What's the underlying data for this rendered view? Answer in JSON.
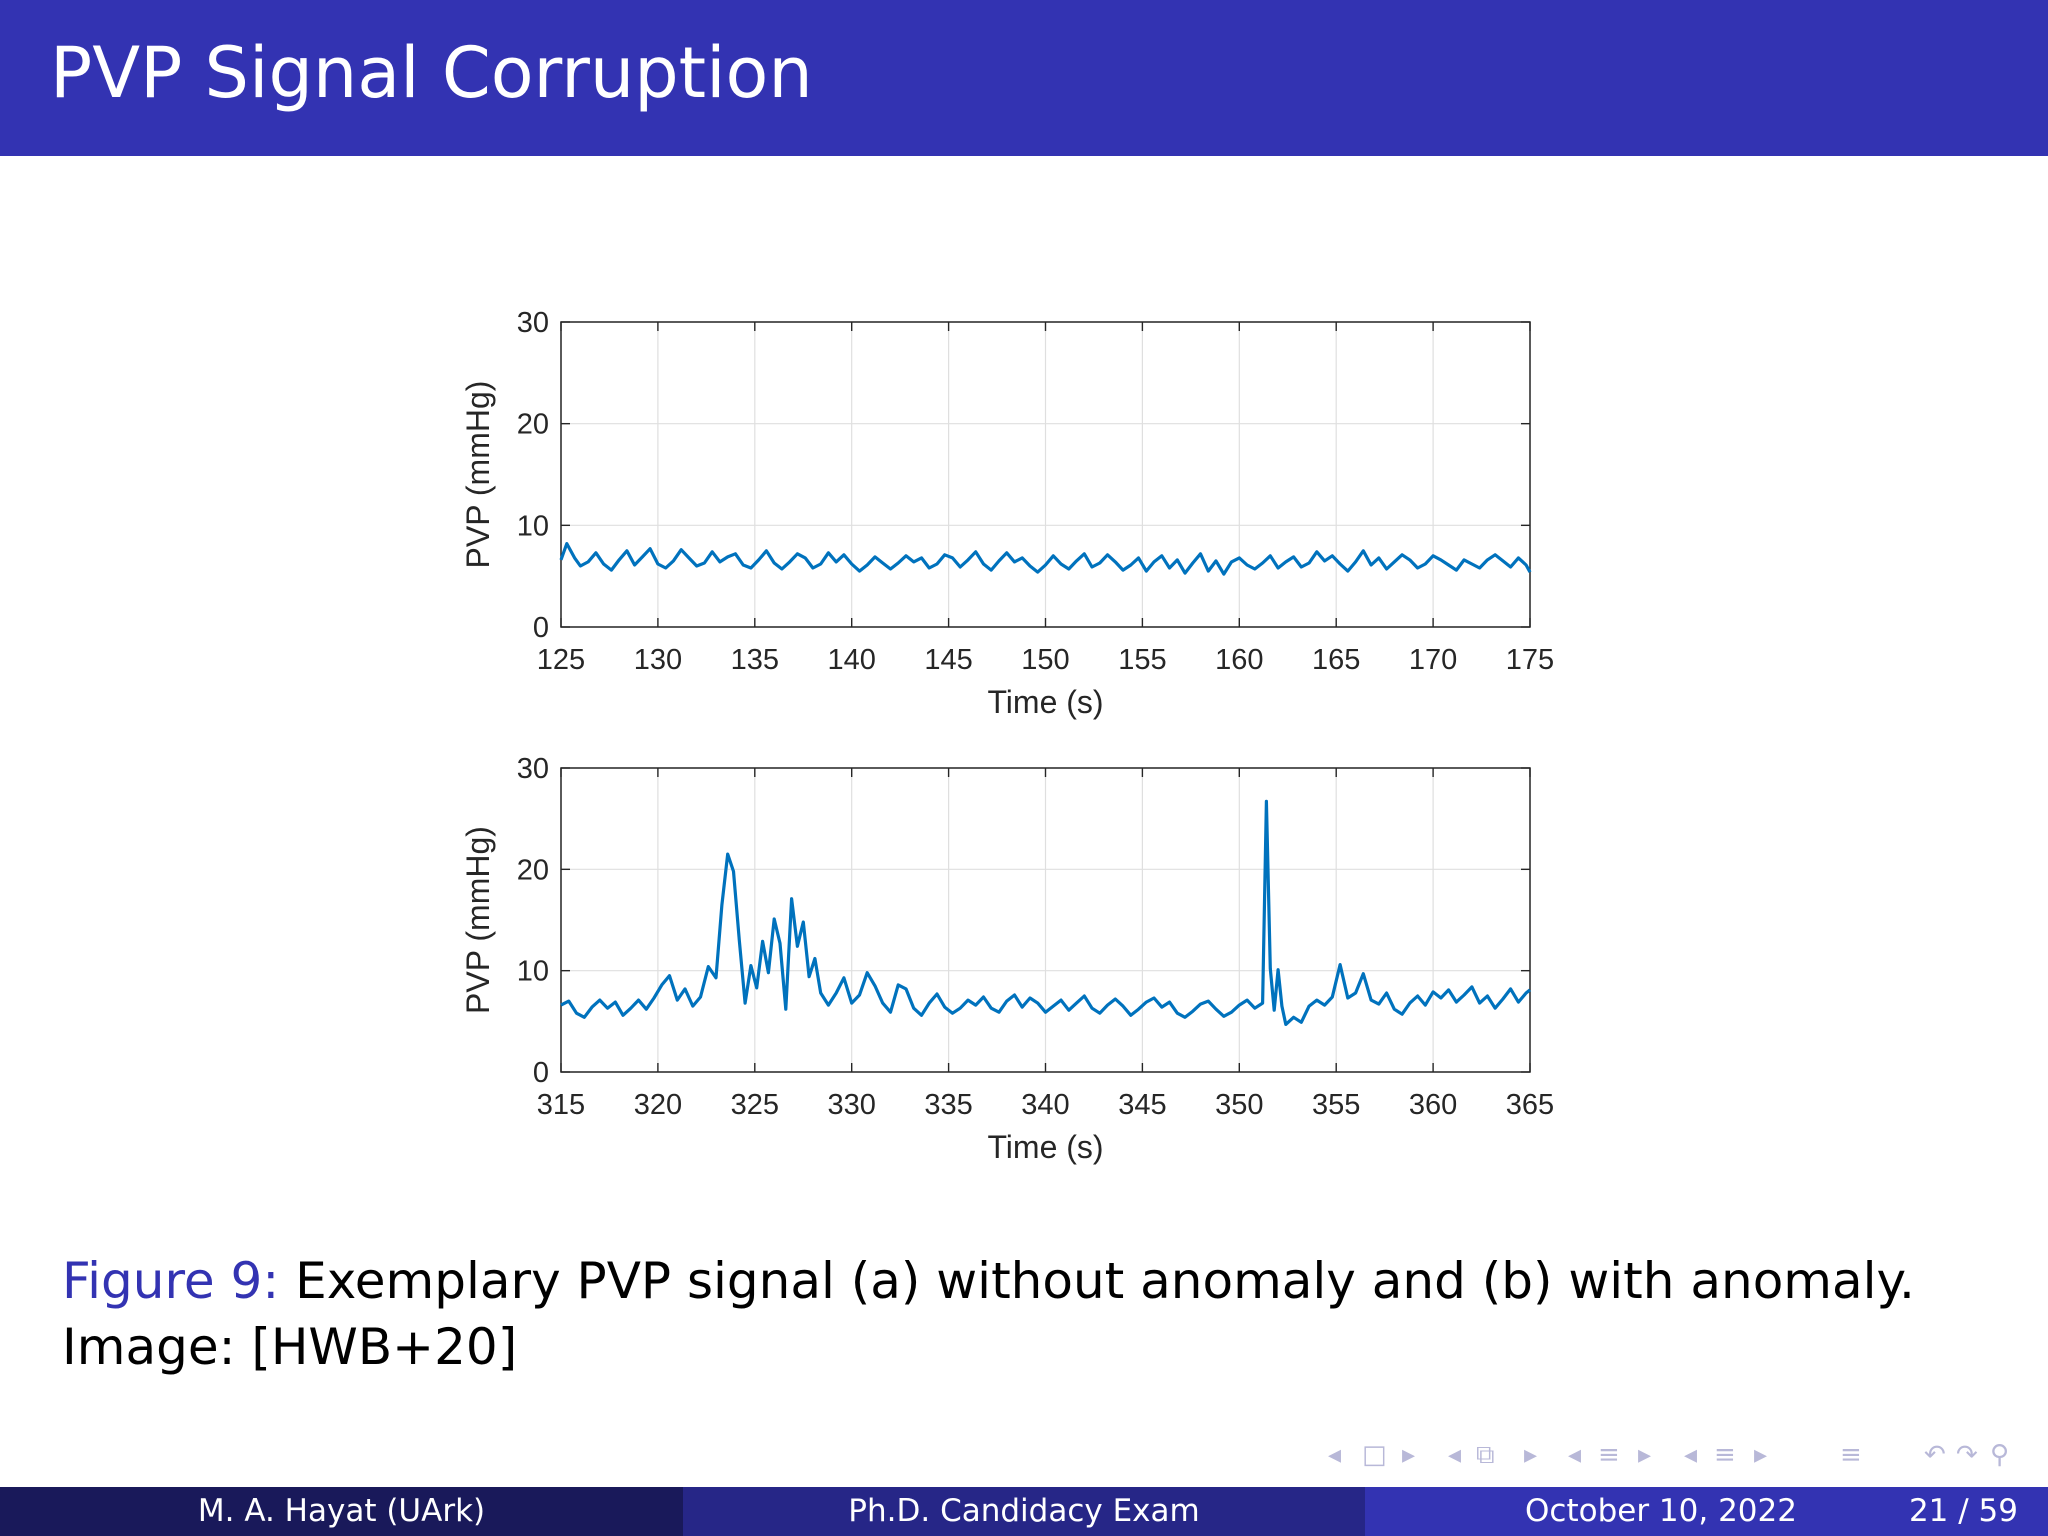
{
  "slide": {
    "title": "PVP Signal Corruption",
    "caption_label": "Figure 9:",
    "caption_text": "Exemplary PVP signal (a) without anomaly and (b) with anomaly.",
    "caption_line2": "Image:  [HWB+20]"
  },
  "footer": {
    "author": "M. A. Hayat  (UArk)",
    "event": "Ph.D. Candidacy Exam",
    "date": "October 10, 2022",
    "page": "21 / 59"
  },
  "nav_icons": [
    "nav-prev-frame-icon",
    "nav-frame-icon",
    "nav-next-frame-icon",
    "nav-prev-subsection-icon",
    "nav-subsection-icon",
    "nav-next-subsection-icon",
    "nav-prev-section-icon",
    "nav-section-icon",
    "nav-next-section-icon",
    "nav-outline-icon",
    "nav-undo-icon",
    "nav-search-icon"
  ],
  "colors": {
    "accent": "#3333b2",
    "line": "#0072bd",
    "footer_dark": "#19195a",
    "footer_mid": "#262687"
  },
  "chart_data": [
    {
      "type": "line",
      "xlabel": "Time (s)",
      "ylabel": "PVP (mmHg)",
      "xlim": [
        125,
        175
      ],
      "ylim": [
        0,
        30
      ],
      "xticks": [
        125,
        130,
        135,
        140,
        145,
        150,
        155,
        160,
        165,
        170,
        175
      ],
      "yticks": [
        0,
        10,
        20,
        30
      ],
      "grid": true,
      "series": [
        {
          "x": [
            125,
            125.3,
            125.7,
            126,
            126.4,
            126.8,
            127.2,
            127.6,
            128,
            128.4,
            128.8,
            129.2,
            129.6,
            130,
            130.4,
            130.8,
            131.2,
            131.6,
            132,
            132.4,
            132.8,
            133.2,
            133.6,
            134,
            134.4,
            134.8,
            135.2,
            135.6,
            136,
            136.4,
            136.8,
            137.2,
            137.6,
            138,
            138.4,
            138.8,
            139.2,
            139.6,
            140,
            140.4,
            140.8,
            141.2,
            141.6,
            142,
            142.4,
            142.8,
            143.2,
            143.6,
            144,
            144.4,
            144.8,
            145.2,
            145.6,
            146,
            146.4,
            146.8,
            147.2,
            147.6,
            148,
            148.4,
            148.8,
            149.2,
            149.6,
            150,
            150.4,
            150.8,
            151.2,
            151.6,
            152,
            152.4,
            152.8,
            153.2,
            153.6,
            154,
            154.4,
            154.8,
            155.2,
            155.6,
            156,
            156.4,
            156.8,
            157.2,
            157.6,
            158,
            158.4,
            158.8,
            159.2,
            159.6,
            160,
            160.4,
            160.8,
            161.2,
            161.6,
            162,
            162.4,
            162.8,
            163.2,
            163.6,
            164,
            164.4,
            164.8,
            165.2,
            165.6,
            166,
            166.4,
            166.8,
            167.2,
            167.6,
            168,
            168.4,
            168.8,
            169.2,
            169.6,
            170,
            170.4,
            170.8,
            171.2,
            171.6,
            172,
            172.4,
            172.8,
            173.2,
            173.6,
            174,
            174.4,
            174.8,
            175
          ],
          "y": [
            6.6,
            8.2,
            6.8,
            6,
            6.4,
            7.3,
            6.2,
            5.6,
            6.6,
            7.5,
            6.1,
            6.9,
            7.7,
            6.2,
            5.8,
            6.5,
            7.6,
            6.8,
            6,
            6.3,
            7.4,
            6.4,
            6.9,
            7.2,
            6.1,
            5.8,
            6.6,
            7.5,
            6.3,
            5.7,
            6.4,
            7.2,
            6.8,
            5.8,
            6.2,
            7.3,
            6.4,
            7.1,
            6.2,
            5.5,
            6.1,
            6.9,
            6.3,
            5.7,
            6.3,
            7,
            6.4,
            6.8,
            5.8,
            6.2,
            7.1,
            6.8,
            5.9,
            6.6,
            7.4,
            6.2,
            5.6,
            6.5,
            7.3,
            6.4,
            6.8,
            6,
            5.4,
            6.1,
            7,
            6.2,
            5.7,
            6.5,
            7.2,
            5.9,
            6.3,
            7.1,
            6.4,
            5.6,
            6.1,
            6.8,
            5.5,
            6.4,
            7,
            5.8,
            6.6,
            5.3,
            6.3,
            7.2,
            5.5,
            6.5,
            5.2,
            6.4,
            6.8,
            6.1,
            5.7,
            6.3,
            7,
            5.8,
            6.4,
            6.9,
            5.9,
            6.3,
            7.4,
            6.5,
            7,
            6.2,
            5.5,
            6.4,
            7.5,
            6.1,
            6.8,
            5.7,
            6.4,
            7.1,
            6.6,
            5.8,
            6.2,
            7,
            6.6,
            6.1,
            5.6,
            6.6,
            6.2,
            5.8,
            6.6,
            7.1,
            6.5,
            5.9,
            6.8,
            6.1,
            5.4
          ]
        }
      ]
    },
    {
      "type": "line",
      "xlabel": "Time (s)",
      "ylabel": "PVP (mmHg)",
      "xlim": [
        315,
        365
      ],
      "ylim": [
        0,
        30
      ],
      "xticks": [
        315,
        320,
        325,
        330,
        335,
        340,
        345,
        350,
        355,
        360,
        365
      ],
      "yticks": [
        0,
        10,
        20,
        30
      ],
      "grid": true,
      "series": [
        {
          "x": [
            315,
            315.4,
            315.8,
            316.2,
            316.6,
            317,
            317.4,
            317.8,
            318.2,
            318.6,
            319,
            319.4,
            319.8,
            320.2,
            320.6,
            321,
            321.4,
            321.8,
            322.2,
            322.6,
            323,
            323.3,
            323.6,
            323.9,
            324.2,
            324.5,
            324.8,
            325.1,
            325.4,
            325.7,
            326,
            326.3,
            326.6,
            326.9,
            327.2,
            327.5,
            327.8,
            328.1,
            328.4,
            328.8,
            329.2,
            329.6,
            330,
            330.4,
            330.8,
            331.2,
            331.6,
            332,
            332.4,
            332.8,
            333.2,
            333.6,
            334,
            334.4,
            334.8,
            335.2,
            335.6,
            336,
            336.4,
            336.8,
            337.2,
            337.6,
            338,
            338.4,
            338.8,
            339.2,
            339.6,
            340,
            340.4,
            340.8,
            341.2,
            341.6,
            342,
            342.4,
            342.8,
            343.2,
            343.6,
            344,
            344.4,
            344.8,
            345.2,
            345.6,
            346,
            346.4,
            346.8,
            347.2,
            347.6,
            348,
            348.4,
            348.8,
            349.2,
            349.6,
            350,
            350.4,
            350.8,
            351.2,
            351.4,
            351.6,
            351.8,
            352,
            352.2,
            352.4,
            352.8,
            353.2,
            353.6,
            354,
            354.4,
            354.8,
            355.2,
            355.6,
            356,
            356.4,
            356.8,
            357.2,
            357.6,
            358,
            358.4,
            358.8,
            359.2,
            359.6,
            360,
            360.4,
            360.8,
            361.2,
            361.6,
            362,
            362.4,
            362.8,
            363.2,
            363.6,
            364,
            364.4,
            364.8,
            365
          ],
          "y": [
            6.6,
            7,
            5.8,
            5.4,
            6.4,
            7.1,
            6.3,
            6.9,
            5.6,
            6.3,
            7.1,
            6.2,
            7.3,
            8.6,
            9.5,
            7.1,
            8.2,
            6.5,
            7.4,
            10.4,
            9.3,
            16.5,
            21.5,
            19.8,
            13,
            6.8,
            10.5,
            8.3,
            12.9,
            9.8,
            15.1,
            12.7,
            6.2,
            17.1,
            12.4,
            14.8,
            9.4,
            11.2,
            7.8,
            6.6,
            7.8,
            9.3,
            6.8,
            7.6,
            9.8,
            8.5,
            6.8,
            5.9,
            8.6,
            8.2,
            6.3,
            5.6,
            6.8,
            7.7,
            6.4,
            5.8,
            6.3,
            7.1,
            6.6,
            7.4,
            6.3,
            5.9,
            7,
            7.6,
            6.4,
            7.3,
            6.8,
            5.9,
            6.5,
            7.1,
            6.1,
            6.8,
            7.5,
            6.3,
            5.8,
            6.6,
            7.2,
            6.5,
            5.6,
            6.2,
            6.9,
            7.3,
            6.4,
            6.9,
            5.8,
            5.4,
            6,
            6.7,
            7,
            6.2,
            5.5,
            5.9,
            6.6,
            7.1,
            6.3,
            6.8,
            26.7,
            10.2,
            6.1,
            10.1,
            6.5,
            4.7,
            5.4,
            4.9,
            6.5,
            7.1,
            6.6,
            7.4,
            10.6,
            7.3,
            7.8,
            9.7,
            7.1,
            6.7,
            7.8,
            6.2,
            5.7,
            6.8,
            7.5,
            6.6,
            7.9,
            7.3,
            8.1,
            6.9,
            7.6,
            8.4,
            6.8,
            7.5,
            6.3,
            7.2,
            8.2,
            6.9,
            7.8,
            8.1
          ]
        }
      ]
    }
  ]
}
